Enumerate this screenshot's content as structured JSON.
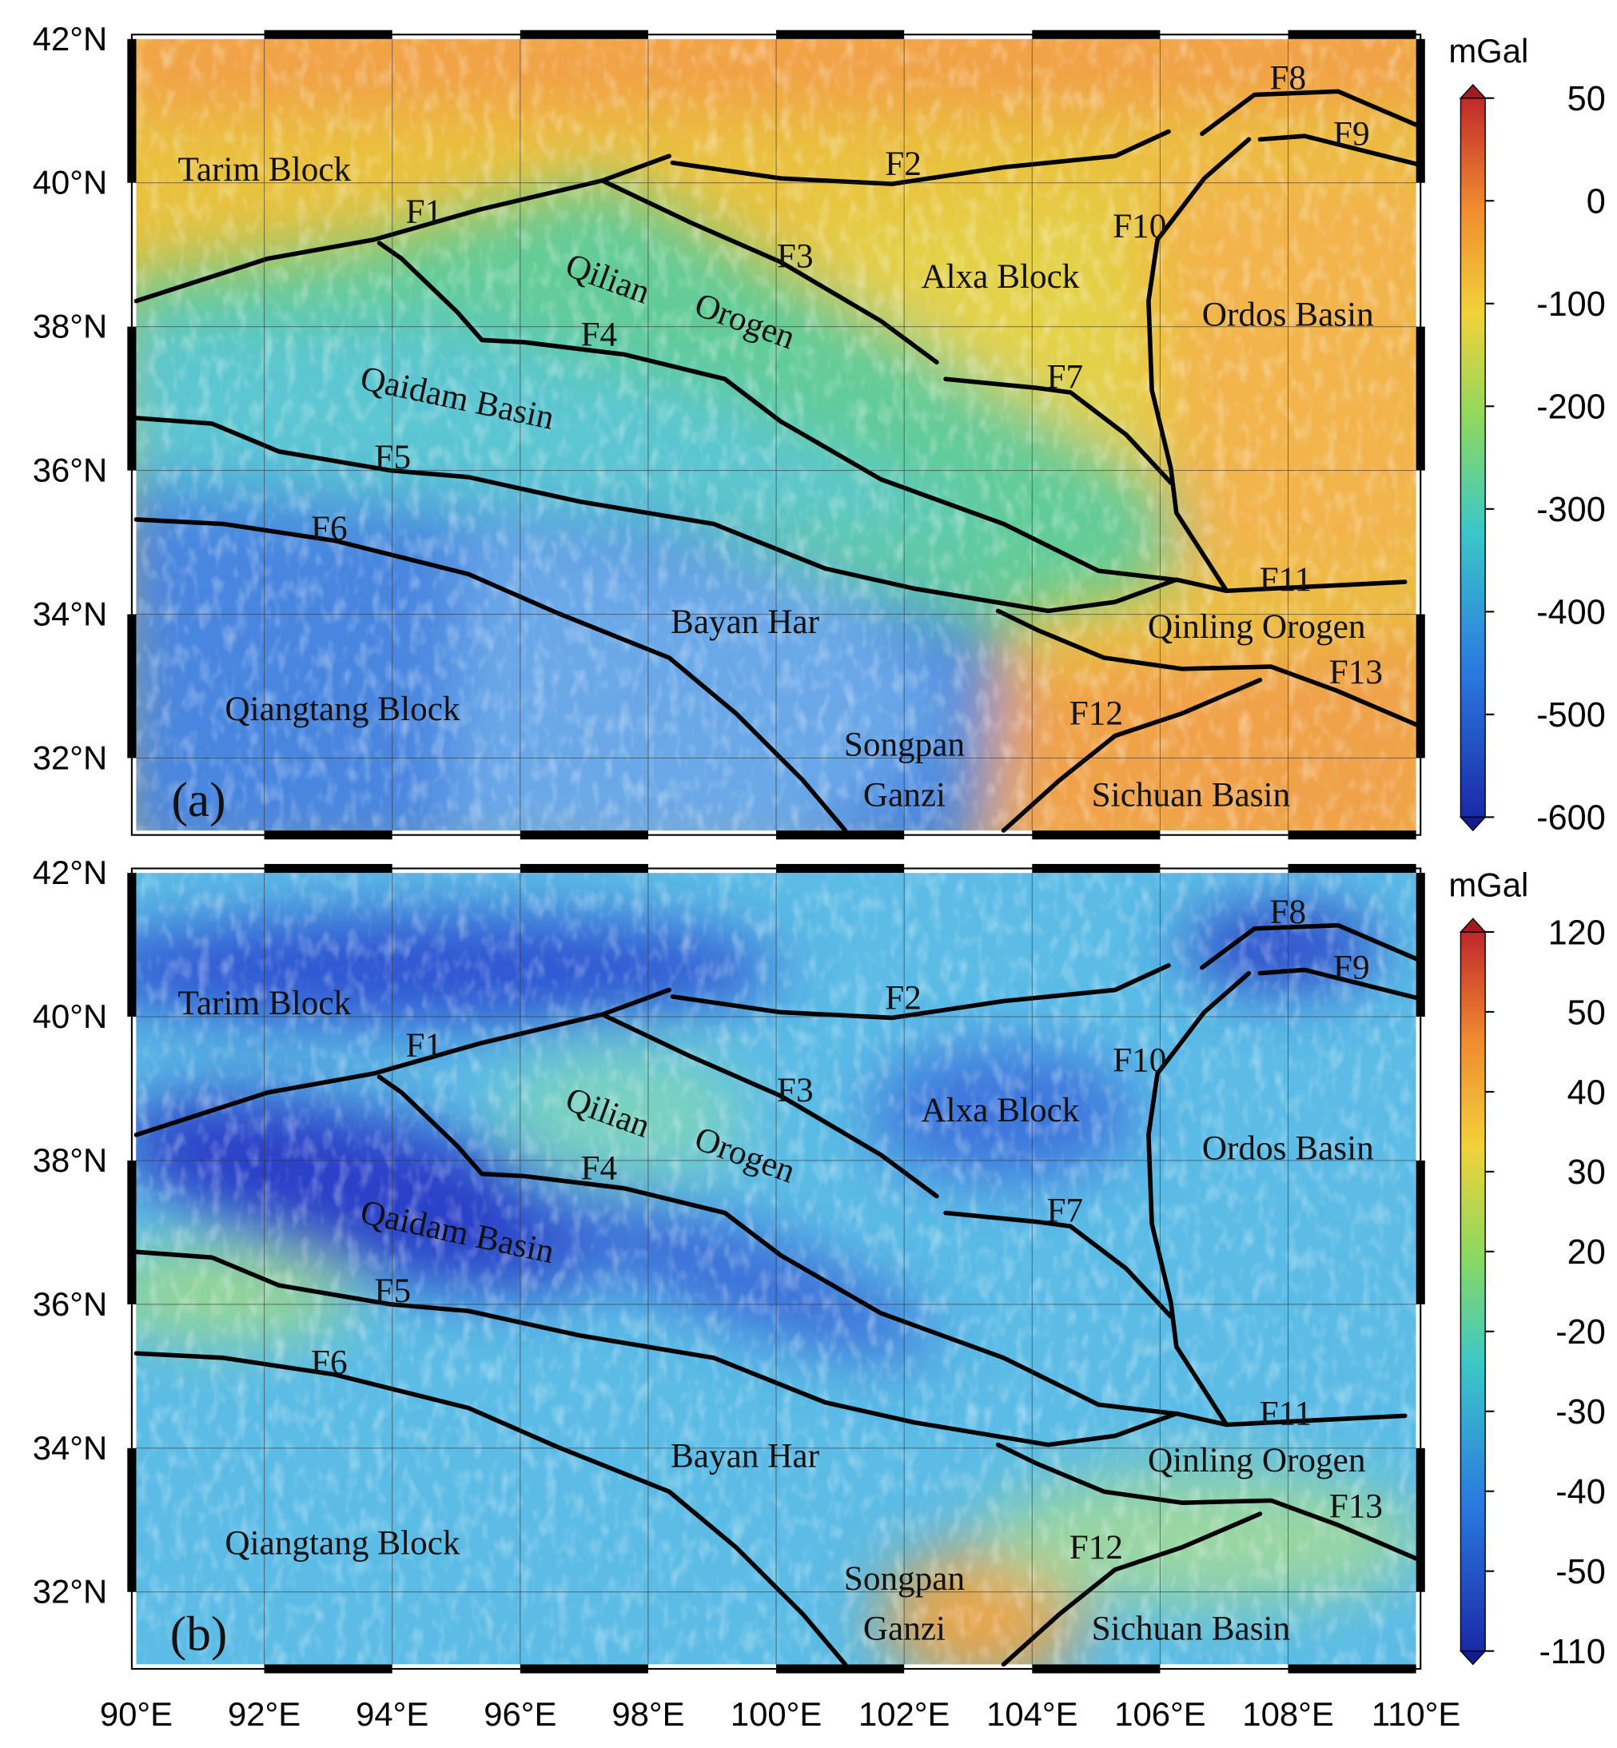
{
  "lat_labels": [
    "42°N",
    "40°N",
    "38°N",
    "36°N",
    "34°N",
    "32°N"
  ],
  "lon_labels": [
    "90°E",
    "92°E",
    "94°E",
    "96°E",
    "98°E",
    "100°E",
    "102°E",
    "104°E",
    "106°E",
    "108°E",
    "110°E"
  ],
  "place_labels": [
    "Tarim Block",
    "Qilian",
    "Orogen",
    "Alxa Block",
    "Ordos Basin",
    "Qaidam Basin",
    "Bayan Har",
    "Qinling Orogen",
    "Qiangtang Block",
    "Songpan",
    "Ganzi",
    "Sichuan Basin"
  ],
  "fault_labels": [
    "F1",
    "F2",
    "F3",
    "F4",
    "F5",
    "F6",
    "F7",
    "F8",
    "F9",
    "F10",
    "F11",
    "F12",
    "F13"
  ],
  "panels": [
    {
      "label": "(a)",
      "unit": "mGal",
      "colorbar_ticks": [
        50,
        0,
        -100,
        -200,
        -300,
        -400,
        -500,
        -600
      ]
    },
    {
      "label": "(b)",
      "unit": "mGal",
      "colorbar_ticks": [
        120,
        50,
        40,
        30,
        20,
        -20,
        -30,
        -40,
        -50,
        -110
      ]
    }
  ]
}
